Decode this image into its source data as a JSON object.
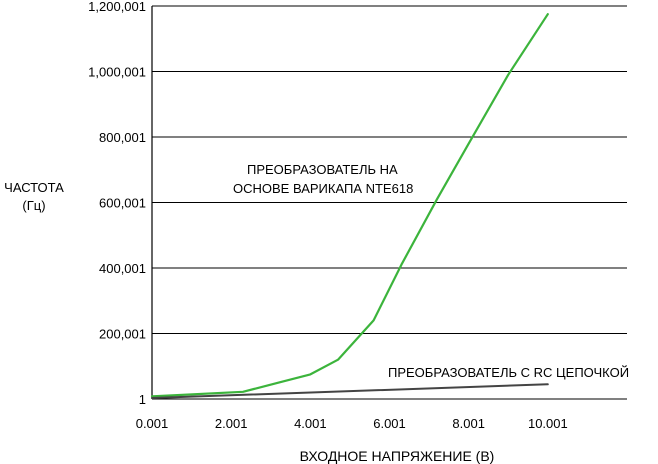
{
  "chart_data": {
    "type": "line",
    "xlabel": "ВХОДНОЕ НАПРЯЖЕНИЕ (В)",
    "ylabel_lines": [
      "ЧАСТОТА",
      "(Гц)"
    ],
    "xlim": [
      0.001,
      12.0
    ],
    "ylim": [
      1,
      1200001
    ],
    "x_ticks": [
      0.001,
      2.001,
      4.001,
      6.001,
      8.001,
      10.001
    ],
    "x_tick_labels": [
      "0.001",
      "2.001",
      "4.001",
      "6.001",
      "8.001",
      "10.001"
    ],
    "y_ticks": [
      1,
      200001,
      400001,
      600001,
      800001,
      1000001,
      1200001
    ],
    "y_tick_labels": [
      "1",
      "200,001",
      "400,001",
      "600,001",
      "800,001",
      "1,000,001",
      "1,200,001"
    ],
    "grid": "horizontal",
    "series": [
      {
        "name_lines": [
          "ПРЕОБРАЗОВАТЕЛЬ НА",
          "ОСНОВЕ ВАРИКАПА NTE618"
        ],
        "color": "#3cb43c",
        "x": [
          0.001,
          2.3,
          4.0,
          4.7,
          5.6,
          6.3,
          7.2,
          8.0,
          9.0,
          10.0
        ],
        "y": [
          8000,
          22000,
          75000,
          120000,
          240000,
          410000,
          610000,
          780000,
          990000,
          1175000
        ]
      },
      {
        "name_lines": [
          "ПРЕОБРАЗОВАТЕЛЬ С RC ЦЕПОЧКОЙ"
        ],
        "color": "#444444",
        "x": [
          0.001,
          10.0
        ],
        "y": [
          3000,
          45000
        ]
      }
    ]
  }
}
